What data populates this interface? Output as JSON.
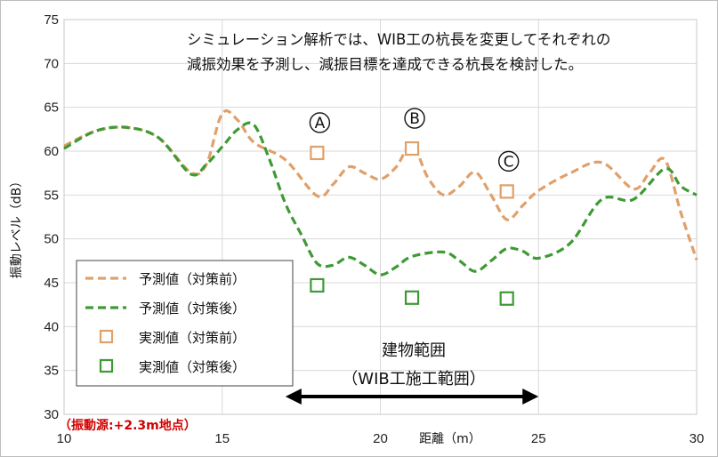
{
  "chart_data": {
    "type": "line",
    "xlabel": "距離（m）",
    "ylabel": "振動レベル（dB）",
    "xlim": [
      10,
      30
    ],
    "ylim": [
      30,
      75
    ],
    "x_ticks": [
      "10",
      "15",
      "20",
      "25",
      "30"
    ],
    "y_ticks": [
      "30",
      "35",
      "40",
      "45",
      "50",
      "55",
      "60",
      "65",
      "70",
      "75"
    ],
    "grid": true,
    "legend_position": "bottom-left",
    "series": [
      {
        "name": "予測値（対策前）",
        "kind": "line",
        "style": "dashed",
        "color": "#E0A06A",
        "points": [
          [
            10,
            60.6
          ],
          [
            11,
            62.3
          ],
          [
            12,
            62.7
          ],
          [
            13,
            61.5
          ],
          [
            14,
            57.6
          ],
          [
            14.5,
            58.5
          ],
          [
            15,
            64.3
          ],
          [
            15.5,
            63.5
          ],
          [
            16,
            61
          ],
          [
            17,
            59
          ],
          [
            18,
            54.9
          ],
          [
            18.5,
            56.2
          ],
          [
            19,
            58.2
          ],
          [
            19.5,
            57.5
          ],
          [
            20,
            56.8
          ],
          [
            20.5,
            58.2
          ],
          [
            21,
            60.7
          ],
          [
            21.5,
            57
          ],
          [
            22,
            55
          ],
          [
            22.5,
            56
          ],
          [
            23,
            57.6
          ],
          [
            23.5,
            55
          ],
          [
            24,
            52.2
          ],
          [
            24.5,
            53.8
          ],
          [
            25,
            55.5
          ],
          [
            26,
            57.5
          ],
          [
            27,
            58.7
          ],
          [
            28,
            55.7
          ],
          [
            28.5,
            57.5
          ],
          [
            29,
            59
          ],
          [
            29.5,
            53
          ],
          [
            30,
            47.6
          ]
        ]
      },
      {
        "name": "予測値（対策後）",
        "kind": "line",
        "style": "dashed",
        "color": "#3E9A35",
        "points": [
          [
            10,
            60.3
          ],
          [
            11,
            62.3
          ],
          [
            12,
            62.7
          ],
          [
            13,
            61.5
          ],
          [
            14,
            57.4
          ],
          [
            14.5,
            58.5
          ],
          [
            15,
            60.5
          ],
          [
            15.5,
            62.5
          ],
          [
            16,
            63
          ],
          [
            16.5,
            59
          ],
          [
            17,
            54
          ],
          [
            17.5,
            50.5
          ],
          [
            18,
            47.2
          ],
          [
            18.5,
            47
          ],
          [
            19,
            47.9
          ],
          [
            19.5,
            47
          ],
          [
            20,
            45.9
          ],
          [
            20.5,
            46.8
          ],
          [
            21,
            48
          ],
          [
            22,
            48.5
          ],
          [
            22.5,
            47.5
          ],
          [
            23,
            46.3
          ],
          [
            23.5,
            47.5
          ],
          [
            24,
            48.9
          ],
          [
            24.5,
            48.6
          ],
          [
            25,
            47.8
          ],
          [
            26,
            49.5
          ],
          [
            27,
            54.5
          ],
          [
            28,
            54.5
          ],
          [
            29,
            58
          ],
          [
            29.5,
            56
          ],
          [
            30,
            55
          ]
        ]
      },
      {
        "name": "実測値（対策前）",
        "kind": "marker",
        "color": "#E0A06A",
        "points": [
          [
            18,
            59.8
          ],
          [
            21,
            60.3
          ],
          [
            24,
            55.4
          ]
        ]
      },
      {
        "name": "実測値（対策後）",
        "kind": "marker",
        "color": "#3E9A35",
        "points": [
          [
            18,
            44.7
          ],
          [
            21,
            43.3
          ],
          [
            24,
            43.2
          ]
        ]
      }
    ],
    "annotations": {
      "note_line1": "シミュレーション解析では、WIB工の杭長を変更してそれぞれの",
      "note_line2": "減振効果を予測し、減振目標を達成できる杭長を検討した。",
      "marker_labels": [
        "A",
        "B",
        "C"
      ],
      "range_label_line1": "建物範囲",
      "range_label_line2": "（WIB工施工範囲）",
      "range_x": [
        17,
        25
      ],
      "source_label": "（振動源:+2.3m地点）"
    }
  }
}
